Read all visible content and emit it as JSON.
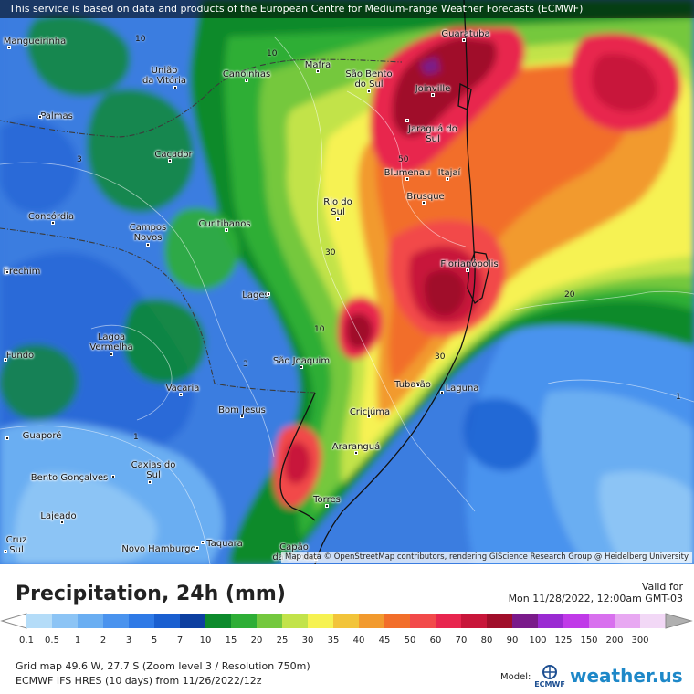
{
  "notice": "This service is based on data and products of the European Centre for Medium-range Weather Forecasts (ECMWF)",
  "attribution": "Map data © OpenStreetMap contributors, rendering GIScience Research Group @ Heidelberg University",
  "cities": [
    {
      "name": "Guaratuba"
    },
    {
      "name": "Mangueirinha"
    },
    {
      "name": "União\nda Vitória"
    },
    {
      "name": "Canoinhas"
    },
    {
      "name": "Mafra"
    },
    {
      "name": "São Bento\ndo Sul"
    },
    {
      "name": "Joinville"
    },
    {
      "name": "Palmas"
    },
    {
      "name": "Jaraguá do\nSul"
    },
    {
      "name": "Caçador"
    },
    {
      "name": "Blumenau"
    },
    {
      "name": "Itajaí"
    },
    {
      "name": "Brusque"
    },
    {
      "name": "Rio do\nSul"
    },
    {
      "name": "Concórdia"
    },
    {
      "name": "Campos\nNovos"
    },
    {
      "name": "Curitibanos"
    },
    {
      "name": "Erechim"
    },
    {
      "name": "Florianópolis"
    },
    {
      "name": "Lages"
    },
    {
      "name": "Lagoa\nVermelha"
    },
    {
      "name": "Fundo"
    },
    {
      "name": "São Joaquim"
    },
    {
      "name": "Tubarão"
    },
    {
      "name": "Laguna"
    },
    {
      "name": "Vacaria"
    },
    {
      "name": "Bom Jesus"
    },
    {
      "name": "Criciúma"
    },
    {
      "name": "Guaporé"
    },
    {
      "name": "Araranguá"
    },
    {
      "name": "Bento Gonçalves"
    },
    {
      "name": "Caxias do\nSul"
    },
    {
      "name": "Torres"
    },
    {
      "name": "Lajeado"
    },
    {
      "name": "Cruz\nSul"
    },
    {
      "name": "Novo Hamburgo"
    },
    {
      "name": "Taquara"
    },
    {
      "name": "Capão\nda Canoa"
    }
  ],
  "contour_labels": [
    "10",
    "10",
    "3",
    "50",
    "30",
    "10",
    "3",
    "30",
    "20",
    "1",
    "1"
  ],
  "legend": {
    "title": "Precipitation, 24h (mm)",
    "valid_label": "Valid for",
    "valid_date": "Mon 11/28/2022, 12:00am GMT-03",
    "scale": [
      {
        "value": "0.1",
        "color": "#b4dcf8"
      },
      {
        "value": "0.5",
        "color": "#8cc4f5"
      },
      {
        "value": "1",
        "color": "#6aaef2"
      },
      {
        "value": "2",
        "color": "#4a93ee"
      },
      {
        "value": "3",
        "color": "#2f7ae6"
      },
      {
        "value": "5",
        "color": "#1a5fd0"
      },
      {
        "value": "7",
        "color": "#0d3fa0"
      },
      {
        "value": "10",
        "color": "#0d8a2c"
      },
      {
        "value": "15",
        "color": "#2eae36"
      },
      {
        "value": "20",
        "color": "#74c83e"
      },
      {
        "value": "25",
        "color": "#c2e34a"
      },
      {
        "value": "30",
        "color": "#f6f252"
      },
      {
        "value": "35",
        "color": "#f2c43a"
      },
      {
        "value": "40",
        "color": "#f29a2e"
      },
      {
        "value": "45",
        "color": "#f26e2a"
      },
      {
        "value": "50",
        "color": "#f24a4a"
      },
      {
        "value": "60",
        "color": "#e8264e"
      },
      {
        "value": "70",
        "color": "#c8163a"
      },
      {
        "value": "80",
        "color": "#a00e2a"
      },
      {
        "value": "90",
        "color": "#7a1a8a"
      },
      {
        "value": "100",
        "color": "#9a2ad2"
      },
      {
        "value": "125",
        "color": "#c03ae8"
      },
      {
        "value": "150",
        "color": "#d870ee"
      },
      {
        "value": "200",
        "color": "#e8a8f2"
      },
      {
        "value": "300",
        "color": "#f2d8f6"
      }
    ],
    "grid_info": "Grid map 49.6 W, 27.7 S (Zoom level 3 / Resolution 750m)",
    "run_info": "ECMWF IFS HRES (10 days) from 11/26/2022/12z",
    "model_label": "Model:",
    "model_logo_text": "ECMWF",
    "brand": "weather.us"
  }
}
